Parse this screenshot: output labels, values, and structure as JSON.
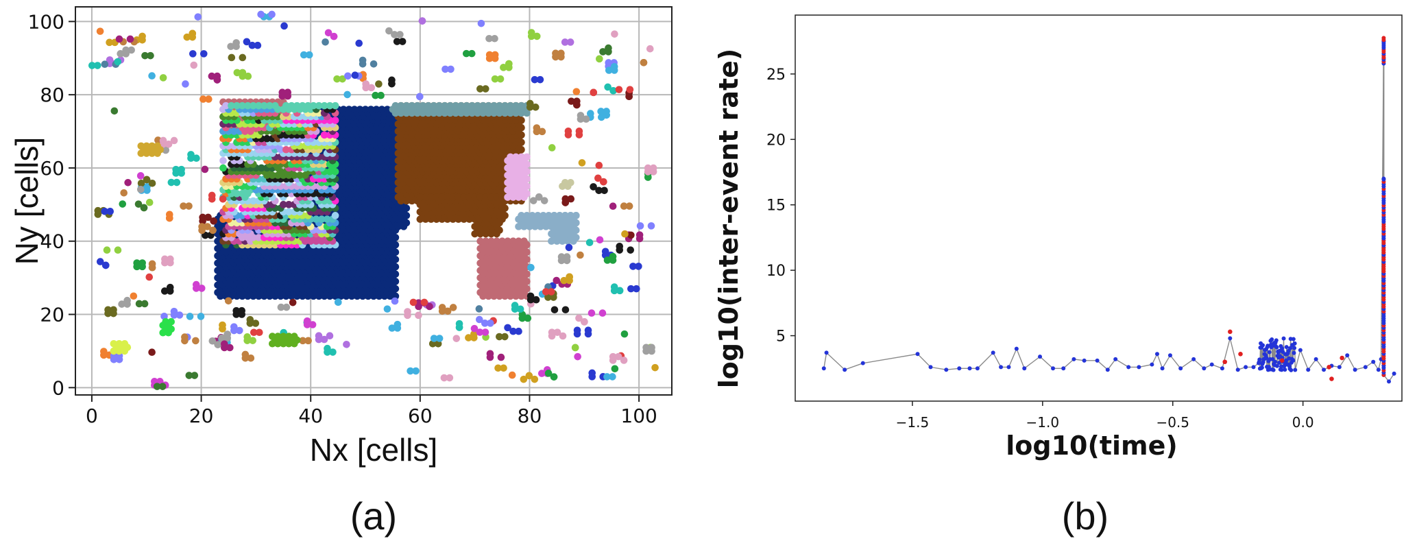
{
  "chart_data": [
    {
      "panel_label": "(a)",
      "type": "scatter",
      "xlabel": "Nx [cells]",
      "ylabel": "Ny [cells]",
      "xlim": [
        -3,
        106
      ],
      "ylim": [
        -2,
        104
      ],
      "xticks": [
        "0",
        "20",
        "40",
        "60",
        "80",
        "100"
      ],
      "yticks": [
        "0",
        "20",
        "40",
        "60",
        "80",
        "100"
      ],
      "grid": true,
      "clusters": [
        {
          "name_color": "#0a2a7a",
          "rects": [
            [
              23,
              25,
              55,
              47
            ],
            [
              40,
              47,
              56,
              76
            ],
            [
              55,
              44,
              57,
              52
            ]
          ]
        },
        {
          "name_color": "#7b4010",
          "rects": [
            [
              56,
              51,
              78,
              77
            ],
            [
              60,
              46,
              75,
              52
            ],
            [
              70,
              42,
              74,
              48
            ]
          ]
        },
        {
          "name_color": "#c06a74",
          "rects": [
            [
              71,
              25,
              79,
              40
            ],
            [
              24,
              70,
              35,
              78
            ]
          ]
        },
        {
          "name_color": "#6f9ea6",
          "rects": [
            [
              55,
              75,
              79,
              77
            ]
          ]
        },
        {
          "name_color": "#e8b0e6",
          "rects": [
            [
              76,
              52,
              79,
              63
            ]
          ]
        },
        {
          "name_color": "#8aaec8",
          "rects": [
            [
              78,
              44,
              88,
              47
            ],
            [
              84,
              40,
              88,
              47
            ]
          ]
        }
      ],
      "mixed_region": [
        24,
        39,
        44,
        77
      ],
      "scatter_seed": 7
    },
    {
      "panel_label": "(b)",
      "type": "line",
      "xlabel": "log10(time)",
      "ylabel": "log10(inter-event rate)",
      "xlim": [
        -1.95,
        0.38
      ],
      "ylim": [
        0,
        29.5
      ],
      "xticks": [
        "−1.5",
        "−1.0",
        "−0.5",
        "0.0"
      ],
      "yticks": [
        "5",
        "10",
        "15",
        "20",
        "25"
      ],
      "series": [
        {
          "line_color": "#8a8a8a",
          "marker_color": "#2434d8",
          "points": [
            [
              -1.84,
              2.5
            ],
            [
              -1.83,
              3.7
            ],
            [
              -1.76,
              2.4
            ],
            [
              -1.69,
              2.9
            ],
            [
              -1.48,
              3.6
            ],
            [
              -1.43,
              2.6
            ],
            [
              -1.37,
              2.4
            ],
            [
              -1.32,
              2.5
            ],
            [
              -1.28,
              2.5
            ],
            [
              -1.25,
              2.5
            ],
            [
              -1.19,
              3.7
            ],
            [
              -1.16,
              2.6
            ],
            [
              -1.13,
              2.6
            ],
            [
              -1.1,
              4.0
            ],
            [
              -1.07,
              2.5
            ],
            [
              -1.01,
              3.4
            ],
            [
              -0.96,
              2.5
            ],
            [
              -0.92,
              2.5
            ],
            [
              -0.88,
              3.2
            ],
            [
              -0.84,
              3.1
            ],
            [
              -0.79,
              3.1
            ],
            [
              -0.75,
              2.4
            ],
            [
              -0.72,
              3.2
            ],
            [
              -0.67,
              2.6
            ],
            [
              -0.63,
              2.6
            ],
            [
              -0.58,
              2.8
            ],
            [
              -0.56,
              3.6
            ],
            [
              -0.54,
              2.5
            ],
            [
              -0.51,
              3.5
            ],
            [
              -0.47,
              2.5
            ],
            [
              -0.42,
              3.2
            ],
            [
              -0.38,
              2.5
            ],
            [
              -0.35,
              2.8
            ],
            [
              -0.31,
              2.5
            ],
            [
              -0.28,
              4.8
            ],
            [
              -0.25,
              2.4
            ],
            [
              -0.22,
              2.6
            ],
            [
              -0.19,
              2.6
            ],
            [
              -0.16,
              4.6
            ],
            [
              -0.14,
              2.5
            ],
            [
              -0.12,
              4.8
            ],
            [
              -0.1,
              2.5
            ],
            [
              -0.08,
              5.1
            ],
            [
              -0.06,
              2.5
            ],
            [
              -0.04,
              3.1
            ],
            [
              -0.01,
              3.9
            ],
            [
              0.02,
              2.4
            ],
            [
              0.05,
              3.2
            ],
            [
              0.08,
              2.4
            ],
            [
              0.11,
              2.7
            ],
            [
              0.14,
              2.6
            ],
            [
              0.17,
              3.5
            ],
            [
              0.2,
              2.4
            ],
            [
              0.24,
              2.6
            ],
            [
              0.27,
              3.0
            ],
            [
              0.29,
              2.4
            ],
            [
              0.3,
              3.2
            ],
            [
              0.31,
              27.5
            ],
            [
              0.31,
              26.2
            ],
            [
              0.31,
              17.0
            ],
            [
              0.31,
              2.0
            ],
            [
              0.33,
              1.5
            ],
            [
              0.35,
              2.1
            ]
          ]
        },
        {
          "marker_color": "#e02020",
          "points": [
            [
              -0.3,
              3.0
            ],
            [
              -0.28,
              5.3
            ],
            [
              -0.24,
              3.6
            ],
            [
              -0.08,
              3.1
            ],
            [
              0.1,
              2.6
            ],
            [
              0.11,
              1.7
            ],
            [
              0.15,
              3.3
            ]
          ]
        }
      ],
      "spike_x": 0.31,
      "spike_range": [
        2.0,
        27.8
      ],
      "dense_cluster": [
        -0.17,
        -0.03,
        2.3,
        4.8
      ]
    }
  ]
}
